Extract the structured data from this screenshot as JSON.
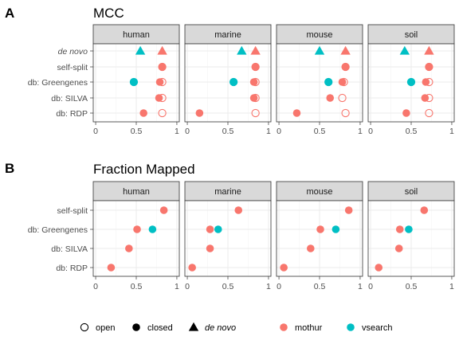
{
  "colors": {
    "mothur": "#F8766D",
    "vsearch": "#00BFC4",
    "strip_bg": "#D9D9D9",
    "grid_major": "#EBEBEB",
    "grid_minor": "#F5F5F5",
    "border": "#333333"
  },
  "chart_data": [
    {
      "type": "scatter",
      "panel_letter": "A",
      "title": "MCC",
      "facets": [
        "human",
        "marine",
        "mouse",
        "soil"
      ],
      "categories": [
        "de novo",
        "self-split",
        "db: Greengenes",
        "db: SILVA",
        "db: RDP"
      ],
      "xlim": [
        -0.03,
        1.03
      ],
      "x_ticks": [
        "0",
        "0.5",
        "1"
      ],
      "x_tick_values": [
        0,
        0.5,
        1
      ],
      "grid": true,
      "points": [
        {
          "facet": "human",
          "category": "de novo",
          "tool": "vsearch",
          "method": "de novo",
          "value": 0.55
        },
        {
          "facet": "human",
          "category": "de novo",
          "tool": "mothur",
          "method": "de novo",
          "value": 0.82
        },
        {
          "facet": "human",
          "category": "self-split",
          "tool": "mothur",
          "method": "closed",
          "value": 0.82
        },
        {
          "facet": "human",
          "category": "self-split",
          "tool": "mothur",
          "method": "open",
          "value": 0.82
        },
        {
          "facet": "human",
          "category": "db: Greengenes",
          "tool": "vsearch",
          "method": "closed",
          "value": 0.47
        },
        {
          "facet": "human",
          "category": "db: Greengenes",
          "tool": "vsearch",
          "method": "open",
          "value": 0.47
        },
        {
          "facet": "human",
          "category": "db: Greengenes",
          "tool": "mothur",
          "method": "closed",
          "value": 0.79
        },
        {
          "facet": "human",
          "category": "db: Greengenes",
          "tool": "mothur",
          "method": "open",
          "value": 0.82
        },
        {
          "facet": "human",
          "category": "db: SILVA",
          "tool": "mothur",
          "method": "closed",
          "value": 0.78
        },
        {
          "facet": "human",
          "category": "db: SILVA",
          "tool": "mothur",
          "method": "open",
          "value": 0.82
        },
        {
          "facet": "human",
          "category": "db: RDP",
          "tool": "mothur",
          "method": "closed",
          "value": 0.59
        },
        {
          "facet": "human",
          "category": "db: RDP",
          "tool": "mothur",
          "method": "open",
          "value": 0.82
        },
        {
          "facet": "marine",
          "category": "de novo",
          "tool": "vsearch",
          "method": "de novo",
          "value": 0.67
        },
        {
          "facet": "marine",
          "category": "de novo",
          "tool": "mothur",
          "method": "de novo",
          "value": 0.84
        },
        {
          "facet": "marine",
          "category": "self-split",
          "tool": "mothur",
          "method": "closed",
          "value": 0.84
        },
        {
          "facet": "marine",
          "category": "self-split",
          "tool": "mothur",
          "method": "open",
          "value": 0.84
        },
        {
          "facet": "marine",
          "category": "db: Greengenes",
          "tool": "vsearch",
          "method": "closed",
          "value": 0.57
        },
        {
          "facet": "marine",
          "category": "db: Greengenes",
          "tool": "vsearch",
          "method": "open",
          "value": 0.57
        },
        {
          "facet": "marine",
          "category": "db: Greengenes",
          "tool": "mothur",
          "method": "closed",
          "value": 0.82
        },
        {
          "facet": "marine",
          "category": "db: Greengenes",
          "tool": "mothur",
          "method": "open",
          "value": 0.84
        },
        {
          "facet": "marine",
          "category": "db: SILVA",
          "tool": "mothur",
          "method": "closed",
          "value": 0.82
        },
        {
          "facet": "marine",
          "category": "db: SILVA",
          "tool": "mothur",
          "method": "open",
          "value": 0.84
        },
        {
          "facet": "marine",
          "category": "db: RDP",
          "tool": "mothur",
          "method": "closed",
          "value": 0.15
        },
        {
          "facet": "marine",
          "category": "db: RDP",
          "tool": "mothur",
          "method": "open",
          "value": 0.84
        },
        {
          "facet": "mouse",
          "category": "de novo",
          "tool": "vsearch",
          "method": "de novo",
          "value": 0.5
        },
        {
          "facet": "mouse",
          "category": "de novo",
          "tool": "mothur",
          "method": "de novo",
          "value": 0.82
        },
        {
          "facet": "mouse",
          "category": "self-split",
          "tool": "mothur",
          "method": "closed",
          "value": 0.82
        },
        {
          "facet": "mouse",
          "category": "self-split",
          "tool": "mothur",
          "method": "open",
          "value": 0.82
        },
        {
          "facet": "mouse",
          "category": "db: Greengenes",
          "tool": "vsearch",
          "method": "closed",
          "value": 0.61
        },
        {
          "facet": "mouse",
          "category": "db: Greengenes",
          "tool": "vsearch",
          "method": "open",
          "value": 0.61
        },
        {
          "facet": "mouse",
          "category": "db: Greengenes",
          "tool": "mothur",
          "method": "closed",
          "value": 0.78
        },
        {
          "facet": "mouse",
          "category": "db: Greengenes",
          "tool": "mothur",
          "method": "open",
          "value": 0.8
        },
        {
          "facet": "mouse",
          "category": "db: SILVA",
          "tool": "mothur",
          "method": "closed",
          "value": 0.63
        },
        {
          "facet": "mouse",
          "category": "db: SILVA",
          "tool": "mothur",
          "method": "open",
          "value": 0.78
        },
        {
          "facet": "mouse",
          "category": "db: RDP",
          "tool": "mothur",
          "method": "closed",
          "value": 0.22
        },
        {
          "facet": "mouse",
          "category": "db: RDP",
          "tool": "mothur",
          "method": "open",
          "value": 0.82
        },
        {
          "facet": "soil",
          "category": "de novo",
          "tool": "vsearch",
          "method": "de novo",
          "value": 0.42
        },
        {
          "facet": "soil",
          "category": "de novo",
          "tool": "mothur",
          "method": "de novo",
          "value": 0.72
        },
        {
          "facet": "soil",
          "category": "self-split",
          "tool": "mothur",
          "method": "closed",
          "value": 0.72
        },
        {
          "facet": "soil",
          "category": "self-split",
          "tool": "mothur",
          "method": "open",
          "value": 0.72
        },
        {
          "facet": "soil",
          "category": "db: Greengenes",
          "tool": "vsearch",
          "method": "closed",
          "value": 0.5
        },
        {
          "facet": "soil",
          "category": "db: Greengenes",
          "tool": "vsearch",
          "method": "open",
          "value": 0.5
        },
        {
          "facet": "soil",
          "category": "db: Greengenes",
          "tool": "mothur",
          "method": "closed",
          "value": 0.68
        },
        {
          "facet": "soil",
          "category": "db: Greengenes",
          "tool": "mothur",
          "method": "open",
          "value": 0.72
        },
        {
          "facet": "soil",
          "category": "db: SILVA",
          "tool": "mothur",
          "method": "closed",
          "value": 0.67
        },
        {
          "facet": "soil",
          "category": "db: SILVA",
          "tool": "mothur",
          "method": "open",
          "value": 0.72
        },
        {
          "facet": "soil",
          "category": "db: RDP",
          "tool": "mothur",
          "method": "closed",
          "value": 0.44
        },
        {
          "facet": "soil",
          "category": "db: RDP",
          "tool": "mothur",
          "method": "open",
          "value": 0.72
        }
      ]
    },
    {
      "type": "scatter",
      "panel_letter": "B",
      "title": "Fraction Mapped",
      "facets": [
        "human",
        "marine",
        "mouse",
        "soil"
      ],
      "categories": [
        "self-split",
        "db: Greengenes",
        "db: SILVA",
        "db: RDP"
      ],
      "xlim": [
        -0.03,
        1.03
      ],
      "x_ticks": [
        "0",
        "0.5",
        "1"
      ],
      "x_tick_values": [
        0,
        0.5,
        1
      ],
      "grid": true,
      "points": [
        {
          "facet": "human",
          "category": "self-split",
          "tool": "mothur",
          "method": "closed",
          "value": 0.84
        },
        {
          "facet": "human",
          "category": "db: Greengenes",
          "tool": "mothur",
          "method": "closed",
          "value": 0.51
        },
        {
          "facet": "human",
          "category": "db: Greengenes",
          "tool": "vsearch",
          "method": "closed",
          "value": 0.7
        },
        {
          "facet": "human",
          "category": "db: SILVA",
          "tool": "mothur",
          "method": "closed",
          "value": 0.41
        },
        {
          "facet": "human",
          "category": "db: RDP",
          "tool": "mothur",
          "method": "closed",
          "value": 0.19
        },
        {
          "facet": "marine",
          "category": "self-split",
          "tool": "mothur",
          "method": "closed",
          "value": 0.63
        },
        {
          "facet": "marine",
          "category": "db: Greengenes",
          "tool": "mothur",
          "method": "closed",
          "value": 0.28
        },
        {
          "facet": "marine",
          "category": "db: Greengenes",
          "tool": "vsearch",
          "method": "closed",
          "value": 0.38
        },
        {
          "facet": "marine",
          "category": "db: SILVA",
          "tool": "mothur",
          "method": "closed",
          "value": 0.28
        },
        {
          "facet": "marine",
          "category": "db: RDP",
          "tool": "mothur",
          "method": "closed",
          "value": 0.06
        },
        {
          "facet": "mouse",
          "category": "self-split",
          "tool": "mothur",
          "method": "closed",
          "value": 0.86
        },
        {
          "facet": "mouse",
          "category": "db: Greengenes",
          "tool": "mothur",
          "method": "closed",
          "value": 0.51
        },
        {
          "facet": "mouse",
          "category": "db: Greengenes",
          "tool": "vsearch",
          "method": "closed",
          "value": 0.7
        },
        {
          "facet": "mouse",
          "category": "db: SILVA",
          "tool": "mothur",
          "method": "closed",
          "value": 0.39
        },
        {
          "facet": "mouse",
          "category": "db: RDP",
          "tool": "mothur",
          "method": "closed",
          "value": 0.06
        },
        {
          "facet": "soil",
          "category": "self-split",
          "tool": "mothur",
          "method": "closed",
          "value": 0.66
        },
        {
          "facet": "soil",
          "category": "db: Greengenes",
          "tool": "mothur",
          "method": "closed",
          "value": 0.36
        },
        {
          "facet": "soil",
          "category": "db: Greengenes",
          "tool": "vsearch",
          "method": "closed",
          "value": 0.47
        },
        {
          "facet": "soil",
          "category": "db: SILVA",
          "tool": "mothur",
          "method": "closed",
          "value": 0.35
        },
        {
          "facet": "soil",
          "category": "db: RDP",
          "tool": "mothur",
          "method": "closed",
          "value": 0.1
        }
      ]
    }
  ],
  "legend": {
    "placement": "bottom",
    "shape_items": [
      {
        "label": "open",
        "shape": "open-circle"
      },
      {
        "label": "closed",
        "shape": "filled-circle"
      },
      {
        "label": "de novo",
        "shape": "triangle"
      }
    ],
    "color_items": [
      {
        "label": "mothur",
        "color": "#F8766D"
      },
      {
        "label": "vsearch",
        "color": "#00BFC4"
      }
    ]
  }
}
